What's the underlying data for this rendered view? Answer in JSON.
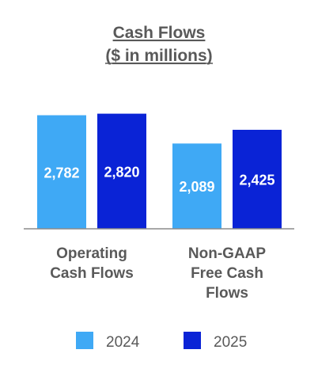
{
  "chart_data": {
    "type": "bar",
    "title": "Cash Flows",
    "subtitle": "($ in millions)",
    "categories": [
      [
        "Operating",
        "Cash Flows"
      ],
      [
        "Non-GAAP",
        "Free Cash",
        "Flows"
      ]
    ],
    "series": [
      {
        "name": "2024",
        "values": [
          2782,
          2089
        ],
        "labels": [
          "2,782",
          "2,089"
        ],
        "color": "#3fa9f5"
      },
      {
        "name": "2025",
        "values": [
          2820,
          2425
        ],
        "labels": [
          "2,820",
          "2,425"
        ],
        "color": "#0a23d6"
      }
    ],
    "ylim": [
      0,
      3200
    ],
    "grid": false,
    "legend": "bottom",
    "axis_color": "#8c8c8c",
    "text_color": "#595959"
  }
}
